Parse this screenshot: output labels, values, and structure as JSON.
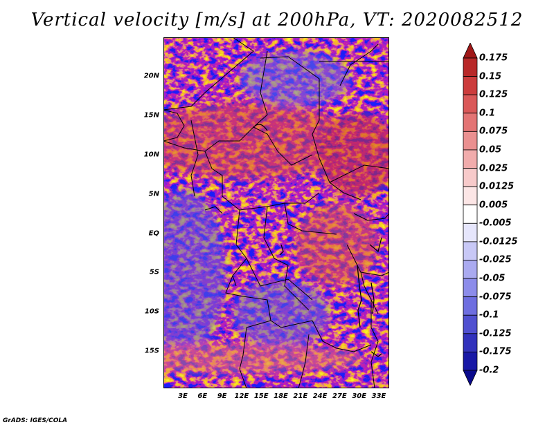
{
  "title": "Vertical velocity [m/s] at 200hPa, VT: 2020082512",
  "credit": "GrADS: IGES/COLA",
  "lat_labels": [
    "20N",
    "15N",
    "10N",
    "5N",
    "EQ",
    "5S",
    "10S",
    "15S"
  ],
  "lon_labels": [
    "3E",
    "6E",
    "9E",
    "12E",
    "15E",
    "18E",
    "21E",
    "24E",
    "27E",
    "30E",
    "33E"
  ],
  "colorbar": {
    "labels": [
      "0.175",
      "0.15",
      "0.125",
      "0.1",
      "0.075",
      "0.05",
      "0.025",
      "0.0125",
      "0.005",
      "-0.005",
      "-0.0125",
      "-0.025",
      "-0.05",
      "-0.075",
      "-0.1",
      "-0.125",
      "-0.175",
      "-0.2"
    ],
    "colors": [
      "#a01818",
      "#b82828",
      "#cc3c3c",
      "#da5858",
      "#e37474",
      "#ea9090",
      "#f1acac",
      "#f7caca",
      "#fce6e6",
      "#ffffff",
      "#e6e6fc",
      "#c8c8f6",
      "#aaaaf0",
      "#8c8cea",
      "#6e6ee0",
      "#5050d0",
      "#3232bc",
      "#1818a6",
      "#0a0a8c"
    ]
  },
  "map_colors": {
    "land_red": "#e05a5a",
    "land_blue": "#6464e0",
    "pale": "#f4f2fb"
  }
}
